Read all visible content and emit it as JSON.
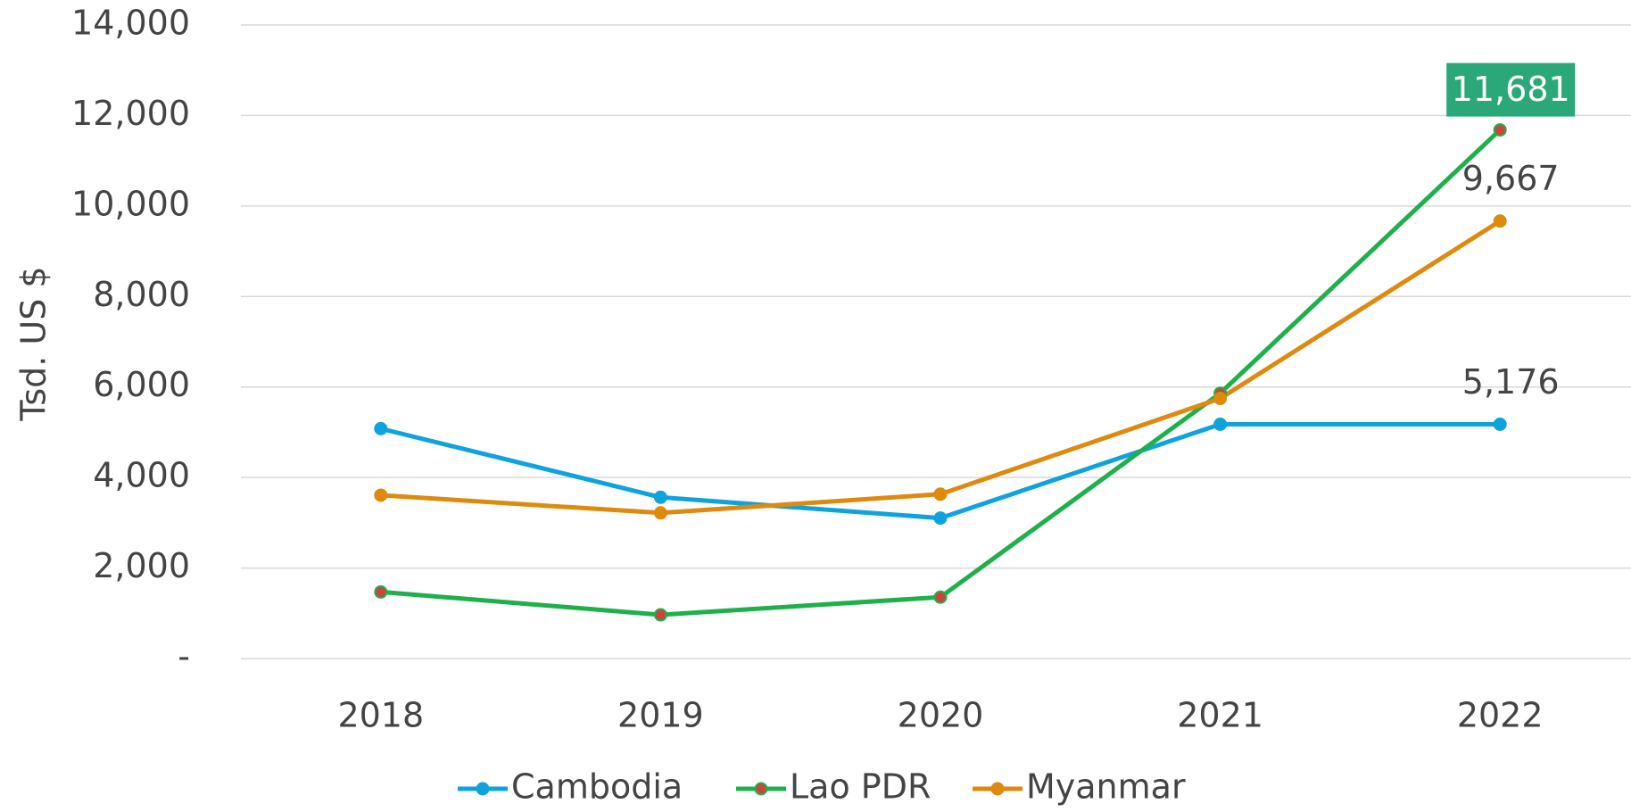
{
  "chart_data": {
    "type": "line",
    "y_axis_label": "Tsd. US $",
    "categories": [
      "2018",
      "2019",
      "2020",
      "2021",
      "2022"
    ],
    "series": [
      {
        "name": "Cambodia",
        "color": "#0fa3de",
        "marker_color": "#0fa3de",
        "values": [
          5080,
          3563,
          3103,
          5176,
          5176
        ],
        "value_labels": [
          null,
          null,
          null,
          null,
          "5,176"
        ]
      },
      {
        "name": "Lao PDR",
        "color": "#1fb04c",
        "marker_color": "#c9463d",
        "values": [
          1471,
          966,
          1356,
          5862,
          11681
        ],
        "value_labels": [
          null,
          null,
          null,
          null,
          "11,681"
        ],
        "label_box_color": "#2aa87a"
      },
      {
        "name": "Myanmar",
        "color": "#de8a0e",
        "marker_color": "#de8a0e",
        "values": [
          3609,
          3218,
          3632,
          5747,
          9667
        ],
        "value_labels": [
          null,
          null,
          null,
          null,
          "9,667"
        ]
      }
    ],
    "ylim": [
      0,
      14000
    ],
    "yticks": [
      {
        "value": 0,
        "label": "-"
      },
      {
        "value": 2000,
        "label": "2,000"
      },
      {
        "value": 4000,
        "label": "4,000"
      },
      {
        "value": 6000,
        "label": "6,000"
      },
      {
        "value": 8000,
        "label": "8,000"
      },
      {
        "value": 10000,
        "label": "10,000"
      },
      {
        "value": 12000,
        "label": "12,000"
      },
      {
        "value": 14000,
        "label": "14,000"
      }
    ],
    "grid": true,
    "legend": "bottom"
  }
}
